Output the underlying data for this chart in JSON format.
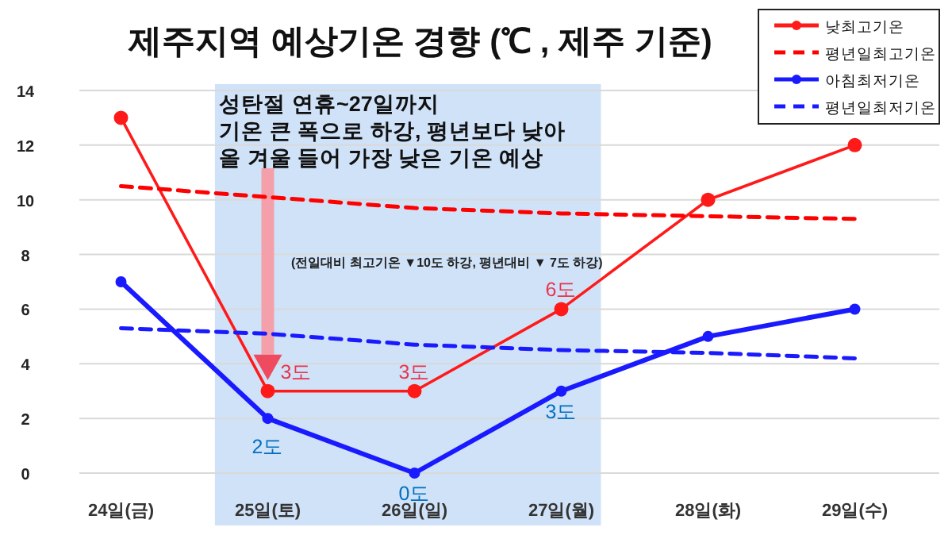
{
  "chart_data": {
    "type": "line",
    "title": "제주지역 예상기온 경향 (℃ , 제주 기준)",
    "categories": [
      "24일(금)",
      "25일(토)",
      "26일(일)",
      "27일(월)",
      "28일(화)",
      "29일(수)"
    ],
    "ylim": [
      0,
      14
    ],
    "yticks": [
      0,
      2,
      4,
      6,
      8,
      10,
      12,
      14
    ],
    "grid": "y",
    "legend": "top right",
    "series": [
      {
        "name": "낮최고기온",
        "color": "#ff1a1a",
        "values": [
          13,
          3,
          3,
          6,
          10,
          12
        ],
        "marker": "circle",
        "line_style": "solid",
        "value_labels": [
          null,
          "3도",
          "3도",
          "6도",
          null,
          null
        ]
      },
      {
        "name": "평년일최고기온",
        "color": "#ff0000",
        "values": [
          10.5,
          10.1,
          9.7,
          9.5,
          9.4,
          9.3
        ],
        "marker": "none",
        "line_style": "dashed"
      },
      {
        "name": "아침최저기온",
        "color": "#1a1aff",
        "values": [
          7,
          2,
          0,
          3,
          5,
          6
        ],
        "marker": "circle",
        "line_style": "solid",
        "value_labels": [
          null,
          "2도",
          "0도",
          "3도",
          null,
          null
        ]
      },
      {
        "name": "평년일최저기온",
        "color": "#1a1aff",
        "values": [
          5.3,
          5.1,
          4.7,
          4.5,
          4.4,
          4.2
        ],
        "marker": "none",
        "line_style": "dashed"
      }
    ],
    "bands": [
      {
        "axis": "x",
        "from": "25일(토)",
        "to": "27일(월)",
        "color": "#cfe2f8"
      }
    ],
    "annotations": [
      "성탄절 연휴~27일까지\n기온 큰 폭으로 하강, 평년보다 낮아\n올 겨울 들어 가장 낮은 기온 예상",
      "(전일대비 최고기온 ▼10도 하강, 평년대비 ▼ 7도 하강)"
    ]
  }
}
